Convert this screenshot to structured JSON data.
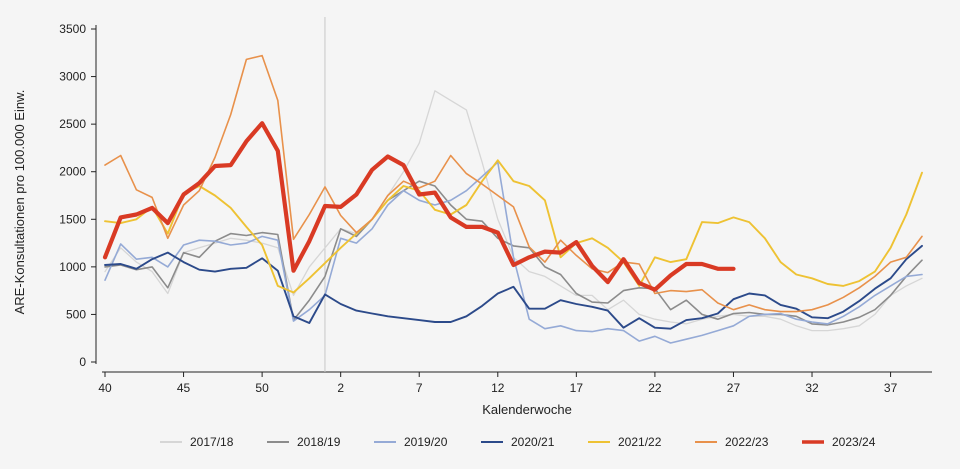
{
  "chart_data": {
    "type": "line",
    "title": "",
    "xlabel": "Kalenderwoche",
    "ylabel": "ARE-Konsultationen pro 100.000 Einw.",
    "ylim": [
      0,
      3500
    ],
    "yticks": [
      0,
      500,
      1000,
      1500,
      2000,
      2500,
      3000,
      3500
    ],
    "x": [
      40,
      41,
      42,
      43,
      44,
      45,
      46,
      47,
      48,
      49,
      50,
      51,
      52,
      53,
      1,
      2,
      3,
      4,
      5,
      6,
      7,
      8,
      9,
      10,
      11,
      12,
      13,
      14,
      15,
      16,
      17,
      18,
      19,
      20,
      21,
      22,
      23,
      24,
      25,
      26,
      27,
      28,
      29,
      30,
      31,
      32,
      33,
      34,
      35,
      36,
      37,
      38,
      39
    ],
    "xticks": [
      40,
      45,
      50,
      2,
      7,
      12,
      17,
      22,
      27,
      32,
      37
    ],
    "vline_at_week": 1,
    "legend_position": "bottom",
    "grid": false,
    "series": [
      {
        "name": "2017/18",
        "color": "#d6d6d6",
        "width": 1.3,
        "values": [
          950,
          1200,
          1050,
          950,
          720,
          1150,
          1200,
          1250,
          1300,
          1280,
          1250,
          1200,
          700,
          1000,
          1200,
          1400,
          1350,
          1500,
          1750,
          2000,
          2300,
          2850,
          2750,
          2650,
          2100,
          1500,
          1100,
          950,
          900,
          800,
          700,
          700,
          550,
          650,
          500,
          450,
          420,
          400,
          450,
          480,
          500,
          480,
          480,
          450,
          380,
          330,
          330,
          350,
          380,
          500,
          700,
          800,
          880
        ]
      },
      {
        "name": "2018/19",
        "color": "#8c8c8c",
        "width": 1.6,
        "values": [
          1000,
          1020,
          970,
          1000,
          780,
          1150,
          1100,
          1270,
          1350,
          1330,
          1360,
          1340,
          440,
          650,
          900,
          1400,
          1320,
          1500,
          1700,
          1800,
          1900,
          1850,
          1650,
          1500,
          1480,
          1300,
          1220,
          1200,
          1000,
          920,
          720,
          630,
          620,
          750,
          780,
          770,
          550,
          650,
          500,
          450,
          510,
          520,
          500,
          500,
          480,
          400,
          390,
          420,
          470,
          550,
          700,
          900,
          1070
        ]
      },
      {
        "name": "2019/20",
        "color": "#95aad6",
        "width": 1.6,
        "values": [
          860,
          1240,
          1080,
          1100,
          1000,
          1230,
          1280,
          1270,
          1230,
          1250,
          1320,
          1280,
          430,
          550,
          700,
          1300,
          1250,
          1400,
          1650,
          1800,
          1700,
          1650,
          1700,
          1800,
          1950,
          2100,
          1100,
          450,
          350,
          380,
          330,
          320,
          350,
          330,
          220,
          270,
          200,
          240,
          280,
          330,
          380,
          480,
          500,
          510,
          450,
          420,
          400,
          480,
          580,
          700,
          800,
          900,
          920
        ]
      },
      {
        "name": "2020/21",
        "color": "#2c4a8a",
        "width": 1.9,
        "values": [
          1020,
          1030,
          980,
          1080,
          1150,
          1050,
          970,
          950,
          980,
          990,
          1090,
          960,
          480,
          410,
          710,
          610,
          540,
          510,
          480,
          460,
          440,
          420,
          420,
          480,
          590,
          720,
          790,
          560,
          560,
          650,
          610,
          580,
          540,
          360,
          460,
          360,
          350,
          440,
          460,
          510,
          660,
          720,
          700,
          600,
          560,
          470,
          460,
          530,
          640,
          770,
          880,
          1080,
          1220
        ]
      },
      {
        "name": "2021/22",
        "color": "#eec233",
        "width": 1.9,
        "values": [
          1480,
          1460,
          1500,
          1630,
          1350,
          1770,
          1850,
          1750,
          1620,
          1420,
          1230,
          800,
          730,
          880,
          1040,
          1200,
          1350,
          1500,
          1700,
          1850,
          1800,
          1600,
          1550,
          1650,
          1900,
          2120,
          1900,
          1850,
          1700,
          1100,
          1250,
          1300,
          1200,
          1050,
          800,
          1100,
          1050,
          1080,
          1470,
          1460,
          1520,
          1470,
          1300,
          1050,
          920,
          880,
          820,
          800,
          850,
          950,
          1200,
          1550,
          1990
        ]
      },
      {
        "name": "2022/23",
        "color": "#e8914b",
        "width": 1.6,
        "values": [
          2070,
          2170,
          1810,
          1730,
          1300,
          1650,
          1800,
          2150,
          2600,
          3180,
          3220,
          2750,
          1290,
          1550,
          1840,
          1540,
          1360,
          1500,
          1750,
          1900,
          1830,
          1900,
          2170,
          1980,
          1870,
          1750,
          1630,
          1210,
          1050,
          1280,
          1120,
          980,
          940,
          1050,
          1030,
          720,
          750,
          740,
          760,
          620,
          550,
          600,
          550,
          530,
          530,
          550,
          600,
          680,
          780,
          900,
          1050,
          1100,
          1320
        ]
      },
      {
        "name": "2023/24",
        "color": "#d93a24",
        "width": 4.2,
        "values": [
          1100,
          1520,
          1550,
          1620,
          1460,
          1760,
          1880,
          2060,
          2070,
          2320,
          2510,
          2220,
          960,
          1270,
          1640,
          1630,
          1760,
          2020,
          2160,
          2070,
          1760,
          1780,
          1520,
          1420,
          1420,
          1360,
          1020,
          1100,
          1160,
          1150,
          1260,
          1010,
          840,
          1080,
          830,
          760,
          910,
          1030,
          1030,
          980,
          980,
          null,
          null,
          null,
          null,
          null,
          null,
          null,
          null,
          null,
          null,
          null,
          null
        ]
      }
    ]
  }
}
